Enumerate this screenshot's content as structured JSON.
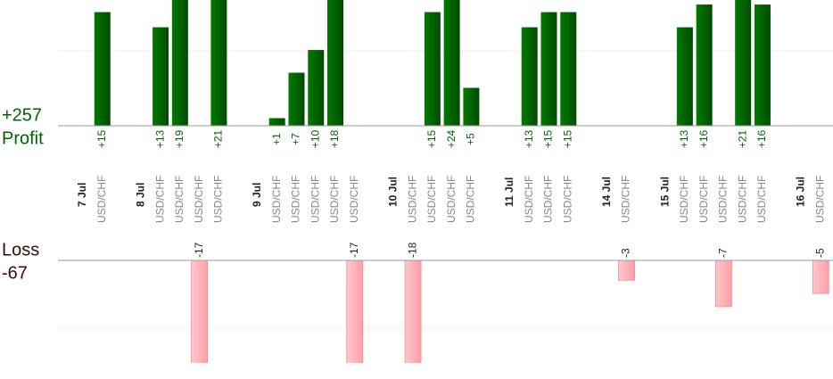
{
  "chart_data": {
    "type": "profit-loss-bars",
    "profit_total": {
      "value": 257,
      "label": "+257"
    },
    "profit_label": "Profit",
    "loss_label": "Loss",
    "loss_total": -67,
    "profit_color": "#006400",
    "loss_color": "#ffb3ba",
    "profit_ylim": [
      0,
      16.6
    ],
    "loss_ylim": [
      -15.5,
      0
    ],
    "days": [
      {
        "date": "7 Jul",
        "trades": [
          {
            "pair": "USD/CHF",
            "value": 15,
            "value_label": "+15"
          }
        ]
      },
      {
        "date": "8 Jul",
        "trades": [
          {
            "pair": "USD/CHF",
            "value": 13,
            "value_label": "+13"
          },
          {
            "pair": "USD/CHF",
            "value": 19,
            "value_label": "+19"
          },
          {
            "pair": "USD/CHF",
            "value": -17
          },
          {
            "pair": "USD/CHF",
            "value": 21,
            "value_label": "+21"
          }
        ]
      },
      {
        "date": "9 Jul",
        "trades": [
          {
            "pair": "USD/CHF",
            "value": 1,
            "value_label": "+1"
          },
          {
            "pair": "USD/CHF",
            "value": 7,
            "value_label": "+7"
          },
          {
            "pair": "USD/CHF",
            "value": 10,
            "value_label": "+10"
          },
          {
            "pair": "USD/CHF",
            "value": 18,
            "value_label": "+18"
          },
          {
            "pair": "USD/CHF",
            "value": -17
          }
        ]
      },
      {
        "date": "10 Jul",
        "trades": [
          {
            "pair": "USD/CHF",
            "value": -18
          },
          {
            "pair": "USD/CHF",
            "value": 15,
            "value_label": "+15"
          },
          {
            "pair": "USD/CHF",
            "value": 24,
            "value_label": "+24"
          },
          {
            "pair": "USD/CHF",
            "value": 5,
            "value_label": "+5"
          }
        ]
      },
      {
        "date": "11 Jul",
        "trades": [
          {
            "pair": "USD/CHF",
            "value": 13,
            "value_label": "+13"
          },
          {
            "pair": "USD/CHF",
            "value": 15,
            "value_label": "+15"
          },
          {
            "pair": "USD/CHF",
            "value": 15,
            "value_label": "+15"
          }
        ]
      },
      {
        "date": "14 Jul",
        "trades": [
          {
            "pair": "USD/CHF",
            "value": -3
          }
        ]
      },
      {
        "date": "15 Jul",
        "trades": [
          {
            "pair": "USD/CHF",
            "value": 13,
            "value_label": "+13"
          },
          {
            "pair": "USD/CHF",
            "value": 16,
            "value_label": "+16"
          },
          {
            "pair": "USD/CHF",
            "value": -7
          },
          {
            "pair": "USD/CHF",
            "value": 21,
            "value_label": "+21"
          },
          {
            "pair": "USD/CHF",
            "value": 16,
            "value_label": "+16"
          }
        ]
      },
      {
        "date": "16 Jul",
        "trades": [
          {
            "pair": "USD/CHF",
            "value": -5
          }
        ]
      }
    ]
  }
}
